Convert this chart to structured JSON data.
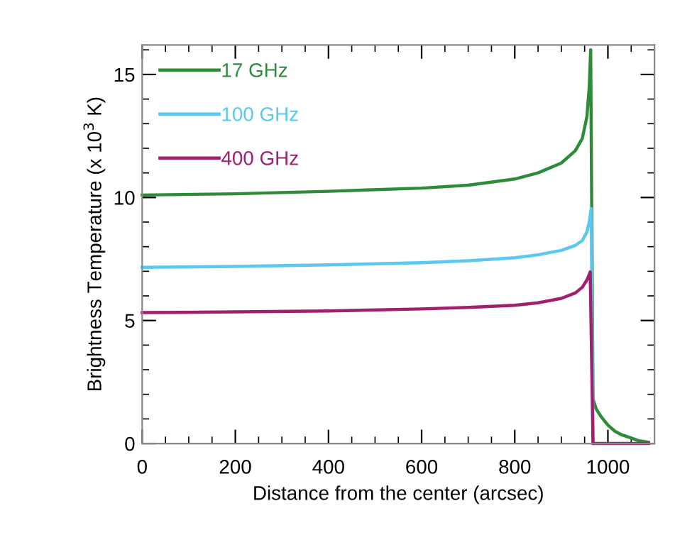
{
  "chart_data": {
    "type": "line",
    "xlabel": "Distance from the center (arcsec)",
    "ylabel": "Brightness Temperature (x 10$^{3}$ K)",
    "xlim": [
      0,
      1100
    ],
    "xticks": [
      0,
      200,
      400,
      600,
      800,
      1000
    ],
    "ylim": [
      0,
      16.2
    ],
    "yticks": [
      0,
      5,
      10,
      15
    ],
    "legend": "top left",
    "grid": false,
    "marker": "none",
    "line_style": "solid",
    "series": [
      {
        "name": "17 GHz",
        "color": "#2e8b3a",
        "x": [
          0,
          200,
          400,
          600,
          700,
          800,
          850,
          900,
          930,
          945,
          955,
          960,
          963,
          968,
          975,
          985,
          1000,
          1015,
          1030,
          1046,
          1065,
          1087
        ],
        "values": [
          10.1,
          10.15,
          10.25,
          10.38,
          10.5,
          10.75,
          11.0,
          11.4,
          11.9,
          12.4,
          13.3,
          14.5,
          16.0,
          1.8,
          1.4,
          1.1,
          0.75,
          0.5,
          0.35,
          0.25,
          0.12,
          0.05
        ]
      },
      {
        "name": "100 GHz",
        "color": "#5bc8f0",
        "x": [
          0,
          200,
          400,
          600,
          700,
          800,
          850,
          900,
          930,
          945,
          955,
          960,
          964,
          968
        ],
        "values": [
          7.16,
          7.2,
          7.26,
          7.35,
          7.43,
          7.55,
          7.67,
          7.85,
          8.05,
          8.25,
          8.6,
          9.0,
          9.55,
          0
        ]
      },
      {
        "name": "400 GHz",
        "color": "#a0206e",
        "x": [
          0,
          200,
          400,
          600,
          700,
          800,
          850,
          900,
          930,
          945,
          955,
          962,
          968,
          1087
        ],
        "values": [
          5.32,
          5.35,
          5.39,
          5.47,
          5.53,
          5.62,
          5.72,
          5.9,
          6.12,
          6.35,
          6.65,
          6.97,
          0,
          0
        ]
      }
    ]
  }
}
